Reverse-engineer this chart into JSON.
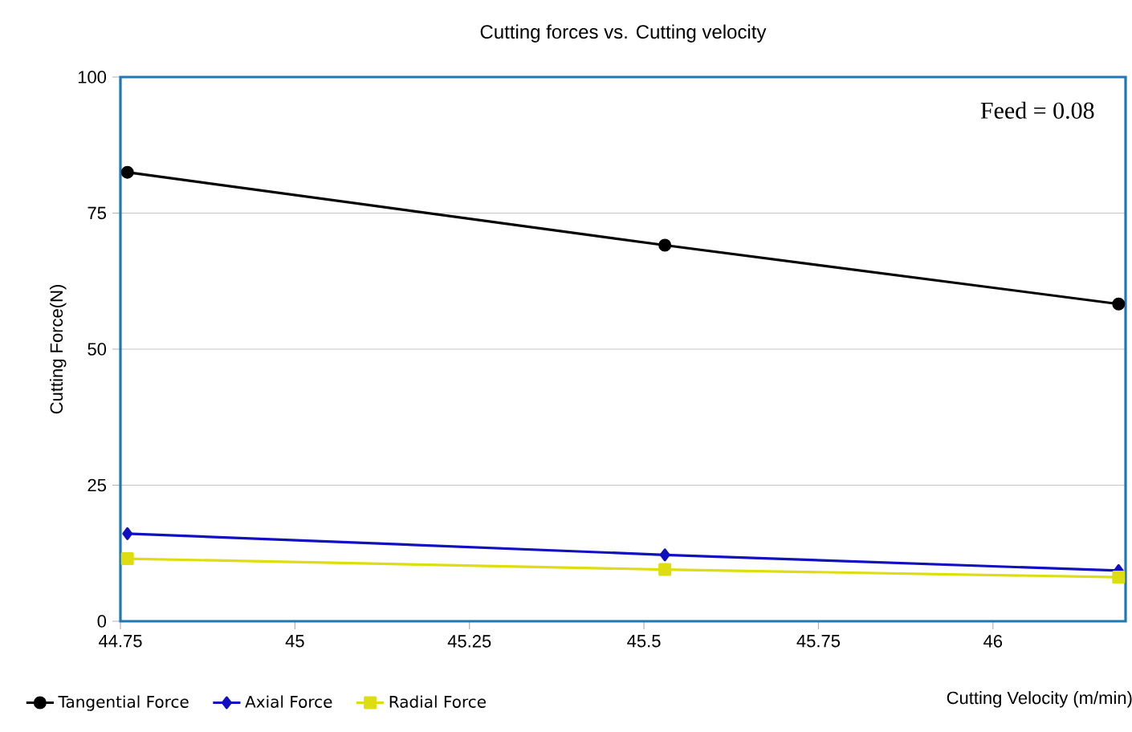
{
  "chart_data": {
    "type": "line",
    "title": "Cutting forces vs. Cutting velocity",
    "xlabel": "Cutting Velocity (m/min)",
    "ylabel": "Cutting Force(N)",
    "annotations": [
      "Feed = 0.08"
    ],
    "xlim": [
      44.75,
      46.19
    ],
    "xticks": [
      44.75,
      45,
      45.25,
      45.5,
      45.75,
      46
    ],
    "ylim": [
      0,
      100
    ],
    "yticks": [
      0,
      25,
      50,
      75,
      100
    ],
    "grid": "y",
    "legend": "bottom",
    "series": [
      {
        "name": "Tangential Force",
        "color": "#000000",
        "marker": "circle",
        "x": [
          44.76,
          45.53,
          46.18
        ],
        "values": [
          82.5,
          69.1,
          58.3
        ]
      },
      {
        "name": "Axial Force",
        "color": "#1010c0",
        "marker": "diamond",
        "x": [
          44.76,
          45.53,
          46.18
        ],
        "values": [
          16.1,
          12.2,
          9.3
        ]
      },
      {
        "name": "Radial Force",
        "color": "#dddd10",
        "marker": "square",
        "x": [
          44.76,
          45.53,
          46.18
        ],
        "values": [
          11.5,
          9.5,
          8.1
        ]
      }
    ]
  }
}
